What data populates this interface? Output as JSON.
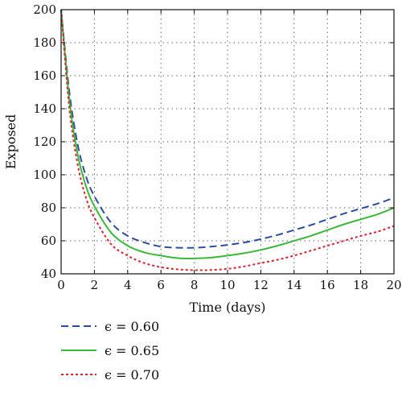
{
  "chart_data": {
    "type": "line",
    "title": "",
    "xlabel": "Time (days)",
    "ylabel": "Exposed",
    "xlim": [
      0,
      20
    ],
    "ylim": [
      40,
      200
    ],
    "xticks": [
      0,
      2,
      4,
      6,
      8,
      10,
      12,
      14,
      16,
      18,
      20
    ],
    "yticks": [
      40,
      60,
      80,
      100,
      120,
      140,
      160,
      180,
      200
    ],
    "grid": true,
    "grid_style": "dotted",
    "legend_position": "below-left",
    "series": [
      {
        "name": "ϵ = 0.60",
        "color": "#2b4ea0",
        "dash": "dashed",
        "x": [
          0,
          0.5,
          1,
          1.5,
          2,
          3,
          4,
          5,
          6,
          7,
          8,
          9,
          10,
          11,
          12,
          13,
          14,
          15,
          16,
          17,
          18,
          19,
          20
        ],
        "y": [
          200,
          150,
          118,
          99,
          87,
          71,
          63,
          59,
          56.5,
          55.8,
          55.8,
          56.5,
          57.5,
          59,
          61,
          63.5,
          66.5,
          69.5,
          73,
          76.5,
          79.5,
          82.5,
          86
        ]
      },
      {
        "name": "ϵ = 0.65",
        "color": "#3cb83a",
        "dash": "solid",
        "x": [
          0,
          0.5,
          1,
          1.5,
          2,
          3,
          4,
          5,
          6,
          7,
          8,
          9,
          10,
          11,
          12,
          13,
          14,
          15,
          16,
          17,
          18,
          19,
          20
        ],
        "y": [
          200,
          145,
          112,
          93,
          81,
          65,
          57,
          53,
          51,
          49.5,
          49.3,
          49.8,
          51,
          52.5,
          54.5,
          57,
          60,
          63,
          66.5,
          70,
          73,
          76,
          80
        ]
      },
      {
        "name": "ϵ = 0.70",
        "color": "#e0202a",
        "dash": "dotted",
        "x": [
          0,
          0.5,
          1,
          1.5,
          2,
          3,
          4,
          5,
          6,
          7,
          8,
          9,
          10,
          11,
          12,
          13,
          14,
          15,
          16,
          17,
          18,
          19,
          20
        ],
        "y": [
          200,
          140,
          106,
          86,
          74,
          58,
          51,
          46.5,
          44,
          42.7,
          42.2,
          42.3,
          43,
          44.5,
          46.5,
          48.5,
          51,
          54,
          57,
          60,
          63,
          65.5,
          69
        ]
      }
    ]
  }
}
